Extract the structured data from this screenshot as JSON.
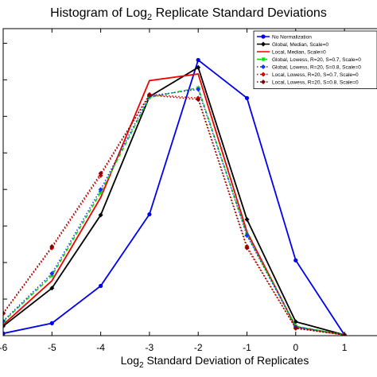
{
  "chart_data": {
    "type": "line",
    "title_main": "Histogram of Log",
    "title_sub": "2",
    "title_rest": " Replicate Standard Deviations",
    "xlabel_main": "Log",
    "xlabel_sub": "2",
    "xlabel_rest": " Standard Deviation of Replicates",
    "ylabel": "",
    "xlim": [
      -6,
      1.7
    ],
    "ylim": [
      0,
      0.42
    ],
    "xticks": [
      "-6",
      "-5",
      "-4",
      "-3",
      "-2",
      "-1",
      "0",
      "1"
    ],
    "x": [
      -6,
      -5,
      -4,
      -3,
      -2,
      -1,
      0,
      1
    ],
    "legend_position": "top-right",
    "series": [
      {
        "name": "No Normalization",
        "color": "#0000ee",
        "style": "solid",
        "marker": "circle",
        "values": [
          0.003,
          0.017,
          0.068,
          0.166,
          0.377,
          0.325,
          0.103,
          0.001
        ]
      },
      {
        "name": "Global, Median, Scale=0",
        "color": "#000000",
        "style": "solid",
        "marker": "diamond",
        "values": [
          0.013,
          0.065,
          0.165,
          0.327,
          0.367,
          0.159,
          0.019,
          0.001
        ]
      },
      {
        "name": "Local, Median, Scale=0",
        "color": "#ee0000",
        "style": "solid",
        "marker": "none",
        "values": [
          0.015,
          0.075,
          0.189,
          0.349,
          0.358,
          0.142,
          0.012,
          0.001
        ]
      },
      {
        "name": "Global, Lowess, R=20, S=0.7, Scale=0",
        "color": "#00dd00",
        "style": "dashed",
        "marker": "star",
        "values": [
          0.019,
          0.082,
          0.196,
          0.326,
          0.339,
          0.138,
          0.013,
          0.001
        ]
      },
      {
        "name": "Global, Lowess, R=20, S=0.8, Scale=0",
        "color": "#1133ff",
        "style": "dotted",
        "marker": "diamond",
        "values": [
          0.02,
          0.085,
          0.2,
          0.328,
          0.337,
          0.137,
          0.012,
          0.001
        ]
      },
      {
        "name": "Local, Lowess, R=20, S=0.7, Scale=0",
        "color": "#dd0000",
        "style": "dotted",
        "marker": "diamond",
        "values": [
          0.03,
          0.12,
          0.219,
          0.33,
          0.325,
          0.122,
          0.01,
          0.001
        ]
      },
      {
        "name": "Local, Lowess, R=20, S=0.8, Scale=0",
        "color": "#880000",
        "style": "dotted",
        "marker": "diamond",
        "values": [
          0.031,
          0.122,
          0.222,
          0.329,
          0.323,
          0.12,
          0.01,
          0.001
        ]
      }
    ]
  }
}
